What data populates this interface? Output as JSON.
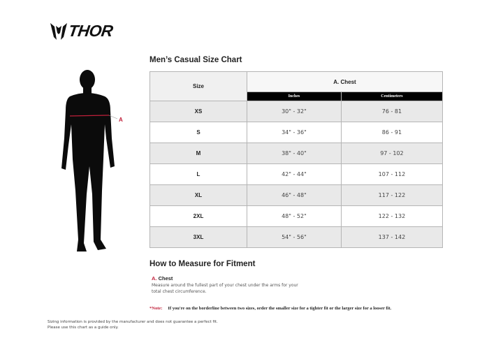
{
  "brand": {
    "name": "THOR"
  },
  "title": "Men’s Casual Size Chart",
  "figure": {
    "marker": "A",
    "marker_color": "#c0203a"
  },
  "table": {
    "size_header": "Size",
    "group_header": "A. Chest",
    "sub_headers": [
      "Inches",
      "Centimeters"
    ],
    "rows": [
      {
        "size": "XS",
        "inches": "30\" - 32\"",
        "cm": "76 - 81"
      },
      {
        "size": "S",
        "inches": "34\" - 36\"",
        "cm": "86 - 91"
      },
      {
        "size": "M",
        "inches": "38\" - 40\"",
        "cm": "97 - 102"
      },
      {
        "size": "L",
        "inches": "42\" - 44\"",
        "cm": "107 - 112"
      },
      {
        "size": "XL",
        "inches": "46\" - 48\"",
        "cm": "117 - 122"
      },
      {
        "size": "2XL",
        "inches": "48\" - 52\"",
        "cm": "122 - 132"
      },
      {
        "size": "3XL",
        "inches": "54\" - 56\"",
        "cm": "137 - 142"
      }
    ]
  },
  "howto": {
    "title": "How to Measure for Fitment",
    "chest_letter": "A.",
    "chest_label": "Chest",
    "chest_desc": "Measure around the fullest part of your chest under the arms for your total chest circumference."
  },
  "note": {
    "label": "*Note:",
    "text": "If you're on the borderline between two sizes, order the smaller size for a tighter fit or the larger size for a looser fit."
  },
  "disclaimer": [
    "Sizing information is provided by the manufacturer and does not guarantee a perfect fit.",
    "Please use this chart as a guide only."
  ]
}
